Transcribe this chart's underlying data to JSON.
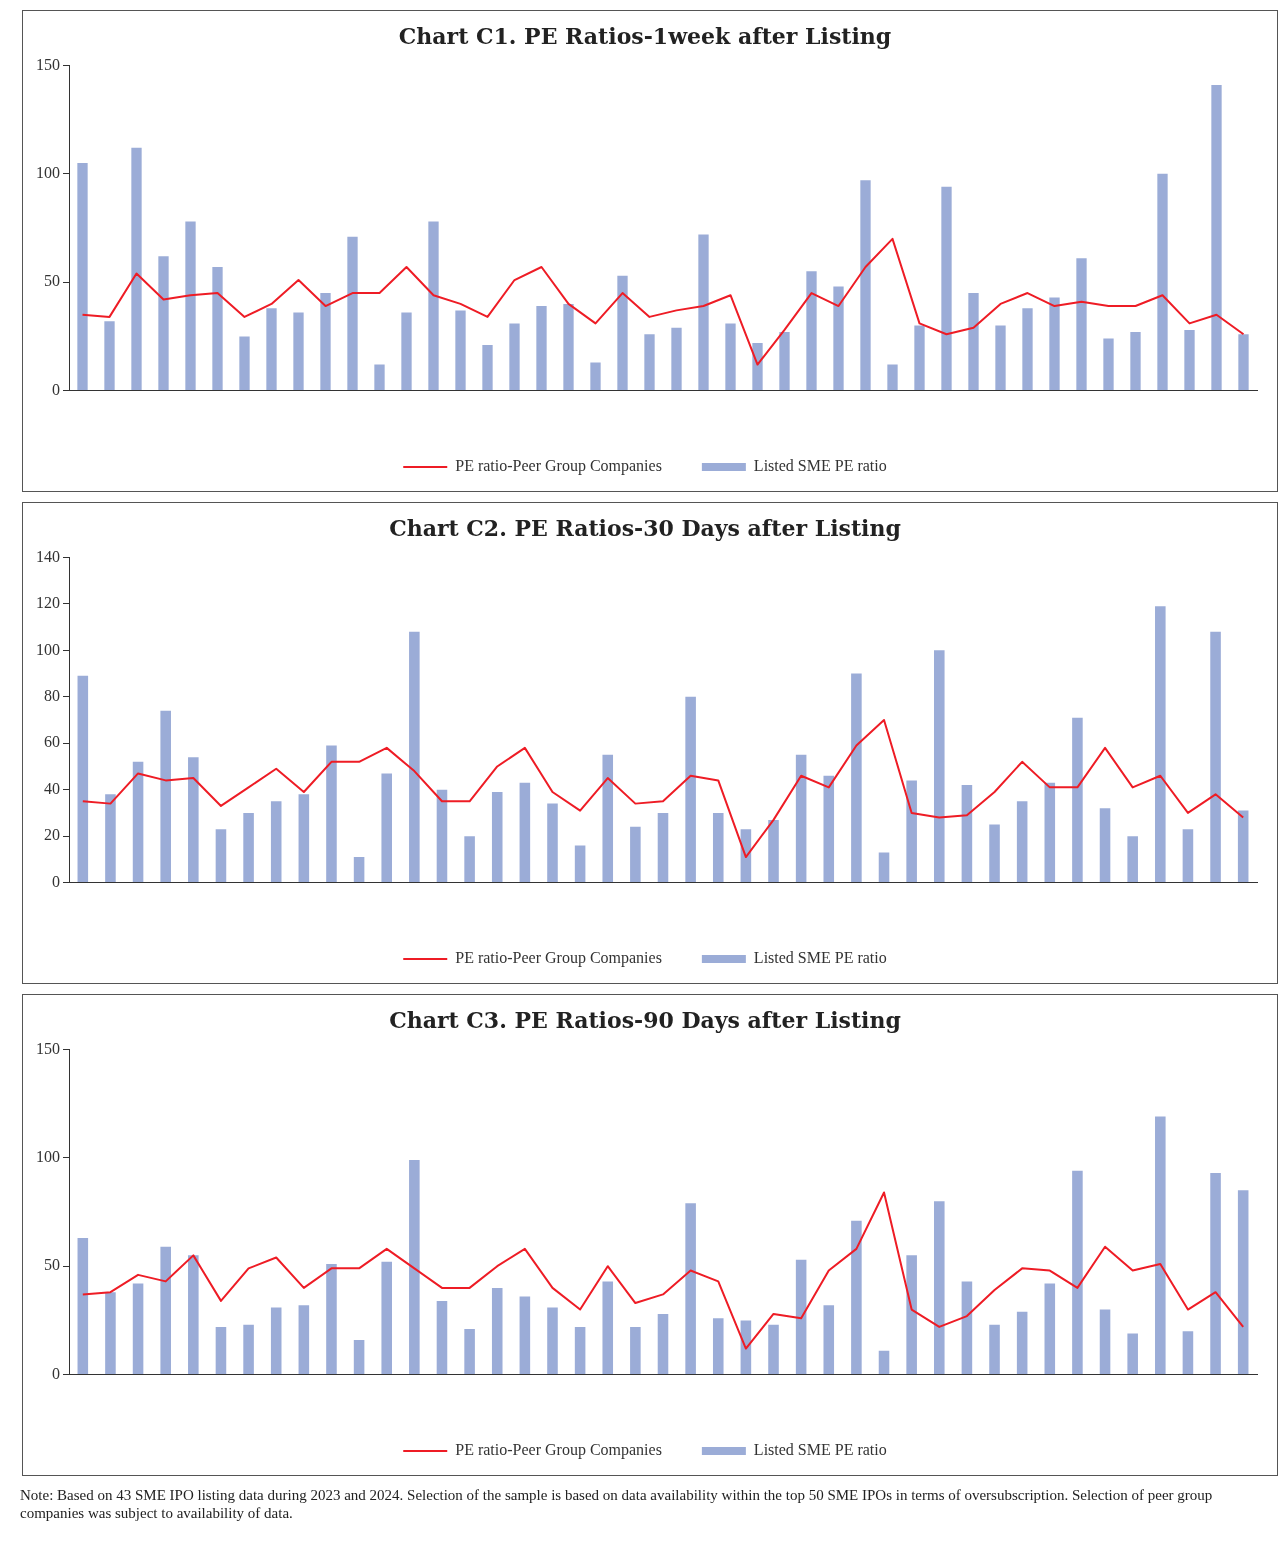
{
  "chart_data": [
    {
      "type": "bar",
      "title": "Chart C1. PE Ratios-1week after Listing",
      "categories": [
        null,
        null,
        null,
        null,
        null,
        null,
        null,
        null,
        null,
        null,
        null,
        null,
        null,
        null,
        null,
        null,
        null,
        null,
        null,
        null,
        null,
        null,
        null,
        null,
        null,
        null,
        null,
        null,
        null,
        null,
        null,
        null,
        null,
        null,
        null,
        null,
        null,
        null,
        null,
        null,
        null,
        null,
        null,
        null
      ],
      "ylim": [
        0,
        150
      ],
      "yticks": [
        0,
        50,
        100,
        150
      ],
      "grid": false,
      "legend": "bottom",
      "marker": "none",
      "series": [
        {
          "name": "Listed SME PE ratio",
          "color": "#9bacd7",
          "values": [
            105,
            32,
            112,
            62,
            78,
            57,
            25,
            38,
            36,
            45,
            71,
            12,
            36,
            78,
            37,
            21,
            31,
            39,
            40,
            13,
            53,
            26,
            29,
            72,
            31,
            22,
            27,
            55,
            48,
            97,
            12,
            30,
            94,
            45,
            30,
            38,
            43,
            61,
            24,
            27,
            100,
            28,
            141,
            26
          ]
        },
        {
          "name": "PE ratio-Peer Group Companies",
          "type": "line",
          "color": "#ee1c25",
          "values": [
            35,
            34,
            54,
            42,
            44,
            45,
            34,
            40,
            51,
            39,
            45,
            45,
            57,
            44,
            40,
            34,
            51,
            57,
            40,
            31,
            45,
            34,
            37,
            39,
            44,
            12,
            28,
            45,
            39,
            57,
            70,
            31,
            26,
            29,
            40,
            45,
            39,
            41,
            39,
            39,
            44,
            31,
            35,
            26
          ]
        }
      ]
    },
    {
      "type": "bar",
      "title": "Chart C2. PE Ratios-30 Days after Listing",
      "categories": [
        null,
        null,
        null,
        null,
        null,
        null,
        null,
        null,
        null,
        null,
        null,
        null,
        null,
        null,
        null,
        null,
        null,
        null,
        null,
        null,
        null,
        null,
        null,
        null,
        null,
        null,
        null,
        null,
        null,
        null,
        null,
        null,
        null,
        null,
        null,
        null,
        null,
        null,
        null,
        null,
        null,
        null,
        null
      ],
      "ylim": [
        0,
        140
      ],
      "yticks": [
        0,
        20,
        40,
        60,
        80,
        100,
        120,
        140
      ],
      "grid": false,
      "legend": "bottom",
      "marker": "none",
      "series": [
        {
          "name": "Listed SME PE ratio",
          "color": "#9bacd7",
          "values": [
            89,
            38,
            52,
            74,
            54,
            23,
            30,
            35,
            38,
            59,
            11,
            47,
            108,
            40,
            20,
            39,
            43,
            34,
            16,
            55,
            24,
            30,
            80,
            30,
            23,
            27,
            55,
            46,
            90,
            13,
            44,
            100,
            42,
            25,
            35,
            43,
            71,
            32,
            20,
            119,
            23,
            108,
            31
          ]
        },
        {
          "name": "PE ratio-Peer Group Companies",
          "type": "line",
          "color": "#ee1c25",
          "values": [
            35,
            34,
            47,
            44,
            45,
            33,
            41,
            49,
            39,
            52,
            52,
            58,
            48,
            35,
            35,
            50,
            58,
            39,
            31,
            45,
            34,
            35,
            46,
            44,
            11,
            27,
            46,
            41,
            59,
            70,
            30,
            28,
            29,
            39,
            52,
            41,
            41,
            58,
            41,
            46,
            30,
            38,
            28
          ]
        }
      ]
    },
    {
      "type": "bar",
      "title": "Chart C3. PE Ratios-90 Days after Listing",
      "categories": [
        null,
        null,
        null,
        null,
        null,
        null,
        null,
        null,
        null,
        null,
        null,
        null,
        null,
        null,
        null,
        null,
        null,
        null,
        null,
        null,
        null,
        null,
        null,
        null,
        null,
        null,
        null,
        null,
        null,
        null,
        null,
        null,
        null,
        null,
        null,
        null,
        null,
        null,
        null,
        null,
        null,
        null,
        null
      ],
      "ylim": [
        0,
        150
      ],
      "yticks": [
        0,
        50,
        100,
        150
      ],
      "grid": false,
      "legend": "bottom",
      "marker": "none",
      "annotations": [
        "Note: Based on 43 SME IPO listing data during 2023 and 2024. Selection of the sample is based on data availability within the top 50 SME IPOs in terms of oversubscription. Selection of peer group companies was subject to availability of data."
      ],
      "series": [
        {
          "name": "Listed SME PE ratio",
          "color": "#9bacd7",
          "values": [
            63,
            38,
            42,
            59,
            55,
            22,
            23,
            31,
            32,
            51,
            16,
            52,
            99,
            34,
            21,
            40,
            36,
            31,
            22,
            43,
            22,
            28,
            79,
            26,
            25,
            23,
            53,
            32,
            71,
            11,
            55,
            80,
            43,
            23,
            29,
            42,
            94,
            30,
            19,
            119,
            20,
            93,
            85
          ]
        },
        {
          "name": "PE ratio-Peer Group Companies",
          "type": "line",
          "color": "#ee1c25",
          "values": [
            37,
            38,
            46,
            43,
            55,
            34,
            49,
            54,
            40,
            49,
            49,
            58,
            49,
            40,
            40,
            50,
            58,
            40,
            30,
            50,
            33,
            37,
            48,
            43,
            12,
            28,
            26,
            48,
            58,
            84,
            30,
            22,
            27,
            39,
            49,
            48,
            40,
            59,
            48,
            51,
            30,
            38,
            22
          ]
        }
      ]
    }
  ]
}
